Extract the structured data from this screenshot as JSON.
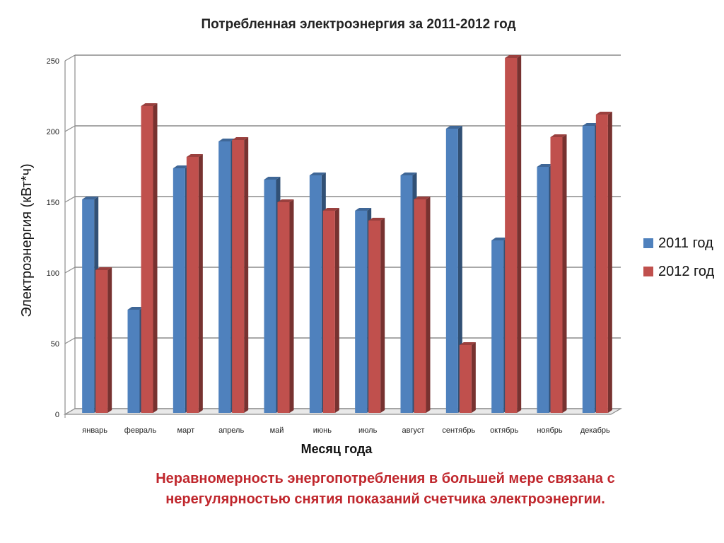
{
  "chart_data": {
    "type": "bar",
    "title": "Потребленная электроэнергия за  2011-2012 год",
    "xlabel": "Месяц года",
    "ylabel": "Электроэнергия (кВт*ч)",
    "ylim": [
      0,
      250
    ],
    "yticks": [
      "0",
      "50",
      "100",
      "150",
      "200",
      "250"
    ],
    "grid": true,
    "legend_position": "right",
    "categories": [
      "январь",
      "февраль",
      "март",
      "апрель",
      "май",
      "июнь",
      "июль",
      "август",
      "сентябрь",
      "октябрь",
      "ноябрь",
      "декабрь"
    ],
    "series": [
      {
        "name": "2011 год",
        "color": "#4f81bd",
        "values": [
          150,
          72,
          172,
          191,
          164,
          167,
          142,
          167,
          200,
          121,
          173,
          202
        ]
      },
      {
        "name": "2012 год",
        "color": "#c0504d",
        "values": [
          100,
          216,
          180,
          192,
          148,
          142,
          135,
          150,
          47,
          250,
          194,
          210
        ]
      }
    ]
  },
  "note": {
    "line1": "Неравномерность энергопотребления в большей мере связана с",
    "line2": "нерегулярностью снятия показаний счетчика электроэнергии."
  }
}
